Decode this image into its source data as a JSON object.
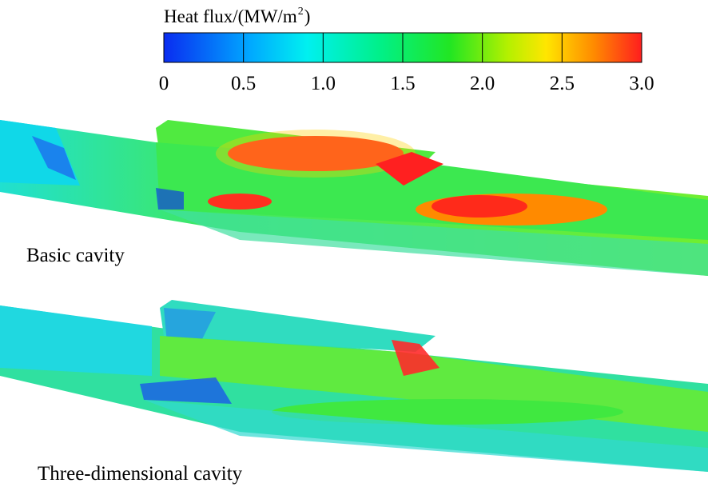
{
  "colorbar": {
    "title": "Heat flux/(MW/m",
    "title_superscript": "2",
    "title_end": ")",
    "range": [
      0,
      3
    ],
    "ticks": [
      0,
      0.5,
      {
        "value": 1,
        "label": "1.0"
      },
      1.5,
      {
        "value": 2,
        "label": "2.0"
      },
      2.5,
      {
        "value": 3,
        "label": "3.0"
      }
    ]
  },
  "panels": [
    {
      "label": "Basic cavity"
    },
    {
      "label": "Three-dimensional cavity"
    }
  ]
}
